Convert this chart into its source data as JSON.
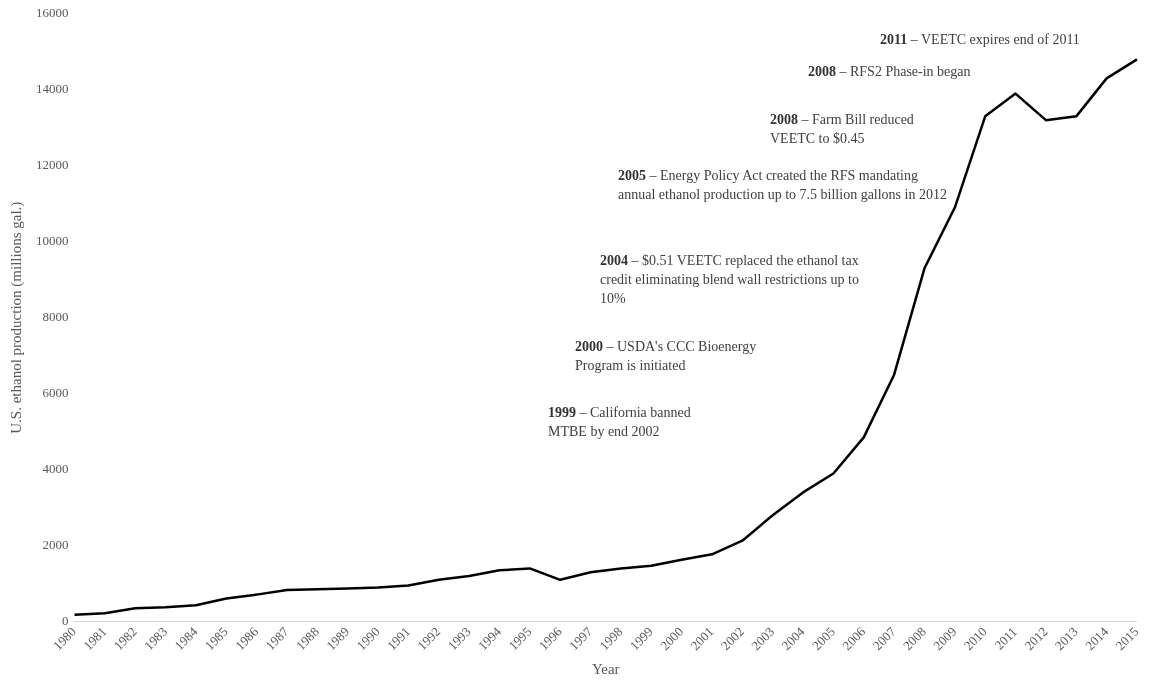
{
  "chart_data": {
    "type": "line",
    "xlabel": "Year",
    "ylabel": "U.S. ethanol production (millions gal.)",
    "categories": [
      "1980",
      "1981",
      "1982",
      "1983",
      "1984",
      "1985",
      "1986",
      "1987",
      "1988",
      "1989",
      "1990",
      "1991",
      "1992",
      "1993",
      "1994",
      "1995",
      "1996",
      "1997",
      "1998",
      "1999",
      "2000",
      "2001",
      "2002",
      "2003",
      "2004",
      "2005",
      "2006",
      "2007",
      "2008",
      "2009",
      "2010",
      "2011",
      "2012",
      "2013",
      "2014",
      "2015"
    ],
    "series": [
      {
        "color": "#000000",
        "values": [
          180,
          220,
          350,
          380,
          430,
          610,
          710,
          830,
          850,
          870,
          900,
          950,
          1100,
          1200,
          1350,
          1400,
          1100,
          1300,
          1400,
          1470,
          1630,
          1770,
          2130,
          2800,
          3400,
          3900,
          4850,
          6500,
          9300,
          10900,
          13300,
          13900,
          13200,
          13300,
          14300,
          14800
        ]
      }
    ],
    "ylim": [
      0,
      16000
    ],
    "yticks": [
      0,
      2000,
      4000,
      6000,
      8000,
      10000,
      12000,
      14000,
      16000
    ],
    "grid": false,
    "legend": false,
    "marker": "none",
    "line_style": "solid",
    "annotations": [
      "2011 –  VEETC expires end of 2011",
      "2008 – RFS2 Phase-in began",
      "2008 – Farm Bill reduced VEETC to $0.45",
      "2005 – Energy Policy Act created the RFS mandating annual ethanol production up to 7.5 billion gallons in 2012",
      "2004 – $0.51 VEETC replaced the ethanol tax credit eliminating blend wall restrictions up to 10%",
      "2000 – USDA's CCC Bioenergy Program is initiated",
      "1999 – California banned MTBE by end 2002"
    ]
  }
}
